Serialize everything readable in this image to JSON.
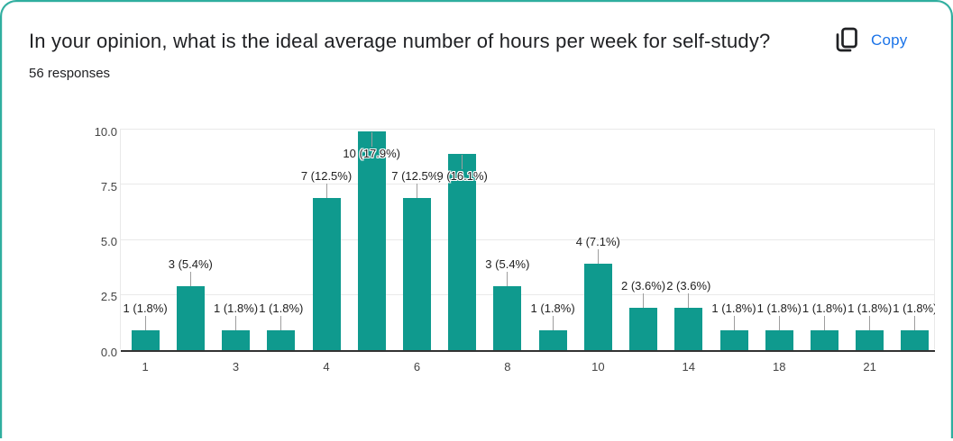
{
  "card": {
    "title": "In your opinion, what is the ideal average number of hours per week for self-study?",
    "responses_count": "56 responses",
    "copy_button": "Copy"
  },
  "colors": {
    "bar": "#0f9a8e",
    "copy_link": "#1a73e8",
    "page_background": "#d8edeb",
    "page_edge": "#2fae9f",
    "gridline": "#e9e9e9",
    "baseline": "#333333",
    "bar_label_text": "#212121",
    "axis_text": "#434343",
    "connector": "#9e9e9e"
  },
  "chart_data": {
    "type": "bar",
    "title": "In your opinion, what is the ideal average number of hours per week for self-study?",
    "subtitle": "56 responses",
    "bars": [
      {
        "value": 1,
        "label": "1 (1.8%)"
      },
      {
        "value": 3,
        "label": "3 (5.4%)"
      },
      {
        "value": 1,
        "label": "1 (1.8%)"
      },
      {
        "value": 1,
        "label": "1 (1.8%)"
      },
      {
        "value": 7,
        "label": "7 (12.5%)"
      },
      {
        "value": 10,
        "label": "10 (17.9%)"
      },
      {
        "value": 7,
        "label": "7 (12.5%)"
      },
      {
        "value": 9,
        "label": "9 (16.1%)"
      },
      {
        "value": 3,
        "label": "3 (5.4%)"
      },
      {
        "value": 1,
        "label": "1 (1.8%)"
      },
      {
        "value": 4,
        "label": "4 (7.1%)"
      },
      {
        "value": 2,
        "label": "2 (3.6%)"
      },
      {
        "value": 2,
        "label": "2 (3.6%)"
      },
      {
        "value": 1,
        "label": "1 (1.8%)"
      },
      {
        "value": 1,
        "label": "1 (1.8%)"
      },
      {
        "value": 1,
        "label": "1 (1.8%)"
      },
      {
        "value": 1,
        "label": "1 (1.8%)"
      },
      {
        "value": 1,
        "label": "1 (1.8%)"
      }
    ],
    "x_tick_labels": [
      "1",
      "3",
      "4",
      "6",
      "8",
      "10",
      "14",
      "18",
      "21"
    ],
    "x_tick_bar_indexes": [
      0,
      2,
      4,
      6,
      8,
      10,
      12,
      14,
      16
    ],
    "y_tick_labels": [
      "0.0",
      "2.5",
      "5.0",
      "7.5",
      "10.0"
    ],
    "ylim": [
      0,
      10
    ],
    "grid": "horizontal",
    "legend": "none"
  }
}
